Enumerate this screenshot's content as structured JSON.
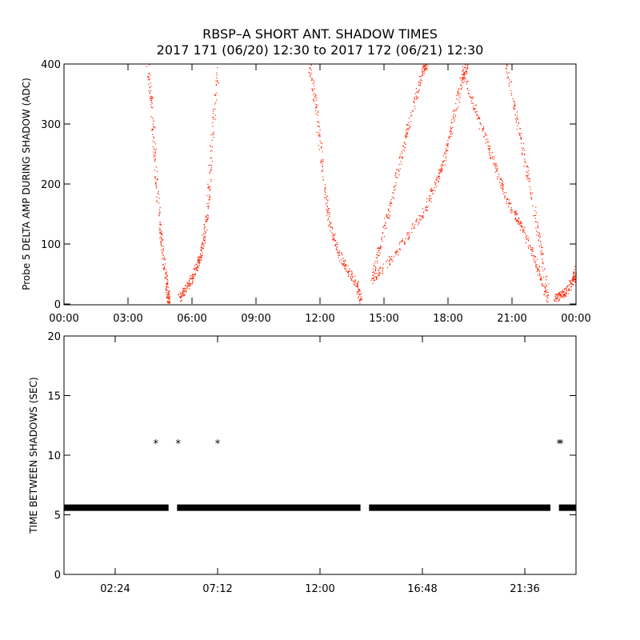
{
  "title": "RBSP–A SHORT ANT. SHADOW TIMES",
  "subtitle": "2017 171 (06/20) 12:30 to 2017 172 (06/21) 12:30",
  "colors": {
    "top_points": "#ff2200",
    "bottom_points": "#000000",
    "axes": "#000000"
  },
  "chart_data": [
    {
      "type": "scatter",
      "ylabel": "Probe 5 DELTA AMP DURING SHADOW (ADC)",
      "xlabel": "",
      "xlim_hours": [
        0,
        24
      ],
      "ylim": [
        0,
        400
      ],
      "x_ticks": [
        0,
        3,
        6,
        9,
        12,
        15,
        18,
        21,
        24
      ],
      "x_tick_labels": [
        "00:00",
        "03:00",
        "06:00",
        "09:00",
        "12:00",
        "15:00",
        "18:00",
        "21:00",
        "00:00"
      ],
      "y_ticks": [
        0,
        100,
        200,
        300,
        400
      ],
      "y_tick_labels": [
        "0",
        "100",
        "200",
        "300",
        "400"
      ],
      "series": [
        {
          "x": [
            3.9,
            4.1,
            4.3,
            4.5,
            4.7,
            4.85,
            4.9
          ],
          "y": [
            400,
            330,
            220,
            120,
            60,
            20,
            5
          ]
        },
        {
          "x": [
            5.4,
            5.7,
            6.0,
            6.3,
            6.5,
            6.7,
            6.9,
            7.2
          ],
          "y": [
            10,
            25,
            45,
            70,
            100,
            150,
            260,
            400
          ]
        },
        {
          "x": [
            11.5,
            11.8,
            12.1,
            12.4,
            12.8,
            13.2,
            13.7,
            13.9
          ],
          "y": [
            400,
            330,
            230,
            140,
            90,
            60,
            35,
            5
          ]
        },
        {
          "x": [
            14.4,
            14.8,
            15.3,
            15.8,
            16.3,
            16.8,
            17.0
          ],
          "y": [
            40,
            100,
            170,
            250,
            320,
            390,
            400
          ]
        },
        {
          "x": [
            14.4,
            15.2,
            16.0,
            16.8,
            17.4,
            17.8,
            18.2,
            18.6,
            18.9
          ],
          "y": [
            40,
            70,
            110,
            150,
            200,
            240,
            300,
            370,
            400
          ]
        },
        {
          "x": [
            18.6,
            19.2,
            19.8,
            20.3,
            20.8,
            21.3,
            21.8,
            22.3,
            22.7
          ],
          "y": [
            400,
            330,
            270,
            220,
            170,
            140,
            100,
            50,
            5
          ]
        },
        {
          "x": [
            20.7,
            21.2,
            21.7,
            22.2,
            22.7
          ],
          "y": [
            400,
            310,
            220,
            120,
            20
          ]
        },
        {
          "x": [
            23.0,
            23.3,
            23.6,
            23.9,
            24.0
          ],
          "y": [
            10,
            15,
            25,
            45,
            60
          ]
        }
      ]
    },
    {
      "type": "scatter",
      "ylabel": "TIME BETWEEN SHADOWS (SEC)",
      "xlabel": "",
      "xlim_hours": [
        0,
        24
      ],
      "ylim": [
        0,
        20
      ],
      "x_ticks": [
        2.4,
        7.2,
        12.0,
        16.8,
        21.6
      ],
      "x_tick_labels": [
        "02:24",
        "07:12",
        "12:00",
        "16:48",
        "21:36"
      ],
      "y_ticks": [
        0,
        5,
        10,
        15,
        20
      ],
      "y_tick_labels": [
        "0",
        "5",
        "10",
        "15",
        "20"
      ],
      "baseline_value": 5.6,
      "baseline_segments_hours": [
        [
          0.0,
          4.9
        ],
        [
          5.3,
          13.9
        ],
        [
          14.3,
          22.8
        ],
        [
          23.2,
          24.0
        ]
      ],
      "outliers": [
        {
          "x": 4.3,
          "y": 11
        },
        {
          "x": 5.35,
          "y": 11
        },
        {
          "x": 7.2,
          "y": 11
        },
        {
          "x": 23.2,
          "y": 11
        },
        {
          "x": 23.3,
          "y": 11
        }
      ]
    }
  ]
}
